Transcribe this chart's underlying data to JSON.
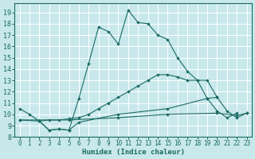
{
  "xlabel": "Humidex (Indice chaleur)",
  "bg_color": "#c8e8ec",
  "grid_color": "#ffffff",
  "line_color": "#1a6b62",
  "xlim": [
    -0.5,
    23.5
  ],
  "ylim": [
    8.0,
    19.8
  ],
  "xticks": [
    0,
    1,
    2,
    3,
    4,
    5,
    6,
    7,
    8,
    9,
    10,
    11,
    12,
    13,
    14,
    15,
    16,
    17,
    18,
    19,
    20,
    21,
    22,
    23
  ],
  "yticks": [
    8,
    9,
    10,
    11,
    12,
    13,
    14,
    15,
    16,
    17,
    18,
    19
  ],
  "series": [
    {
      "x": [
        0,
        1,
        2,
        3,
        4,
        5,
        6,
        7,
        8,
        9,
        10,
        11,
        12,
        13,
        14,
        15,
        16,
        17,
        18,
        19,
        20,
        21,
        22
      ],
      "y": [
        10.5,
        10.0,
        9.4,
        8.6,
        8.7,
        8.6,
        11.4,
        14.5,
        17.7,
        17.3,
        16.2,
        19.2,
        18.1,
        18.0,
        17.0,
        16.6,
        15.0,
        13.8,
        13.0,
        11.4,
        10.3,
        9.7,
        10.1
      ]
    },
    {
      "x": [
        2,
        3,
        4,
        5,
        6,
        7,
        8,
        9,
        10,
        11,
        12,
        13,
        14,
        15,
        16,
        17,
        18,
        19,
        20
      ],
      "y": [
        9.4,
        9.5,
        9.5,
        9.6,
        9.7,
        10.0,
        10.5,
        11.0,
        11.5,
        12.0,
        12.5,
        13.0,
        13.5,
        13.5,
        13.3,
        13.0,
        13.0,
        13.0,
        11.5
      ]
    },
    {
      "x": [
        0,
        2,
        3,
        4,
        5,
        6,
        10,
        15,
        19,
        20,
        21,
        22,
        23
      ],
      "y": [
        9.5,
        9.4,
        8.6,
        8.7,
        8.6,
        9.3,
        10.0,
        10.5,
        11.4,
        11.5,
        10.3,
        9.7,
        10.1
      ]
    },
    {
      "x": [
        0,
        5,
        10,
        15,
        20,
        22,
        23
      ],
      "y": [
        9.5,
        9.5,
        9.7,
        10.0,
        10.1,
        9.9,
        10.1
      ]
    }
  ]
}
